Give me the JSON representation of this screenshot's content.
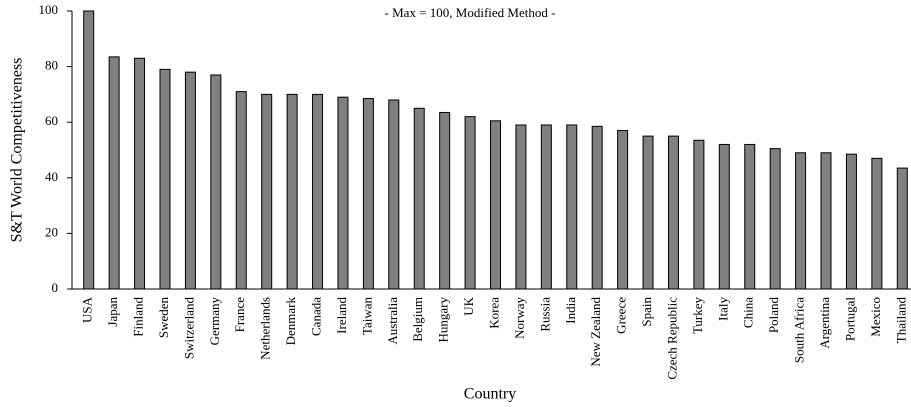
{
  "chart_data": {
    "type": "bar",
    "subtitle": "- Max = 100, Modified Method -",
    "x_label": "Country",
    "y_label": "S&T World Competitiveness",
    "categories": [
      "USA",
      "Japan",
      "Finland",
      "Sweden",
      "Switzerland",
      "Germany",
      "France",
      "Netherlands",
      "Denmark",
      "Canada",
      "Ireland",
      "Taiwan",
      "Australia",
      "Belgium",
      "Hungary",
      "UK",
      "Korea",
      "Norway",
      "Russia",
      "India",
      "New Zealand",
      "Greece",
      "Spain",
      "Czech Republic",
      "Turkey",
      "Italy",
      "China",
      "Poland",
      "South Africa",
      "Argentina",
      "Portugal",
      "Mexico",
      "Thailand"
    ],
    "values": [
      100,
      83.5,
      83,
      79,
      78,
      77,
      71,
      70,
      70,
      70,
      69,
      68.5,
      68,
      65,
      63.5,
      62,
      60.5,
      59,
      59,
      59,
      58.5,
      57,
      55,
      55,
      53.5,
      52,
      52,
      50.5,
      49,
      49,
      48.5,
      47,
      43.5
    ],
    "color": "#808080",
    "ylim": [
      0,
      100
    ],
    "yticks": [
      0,
      20,
      40,
      60,
      80,
      100
    ],
    "grid": false
  }
}
